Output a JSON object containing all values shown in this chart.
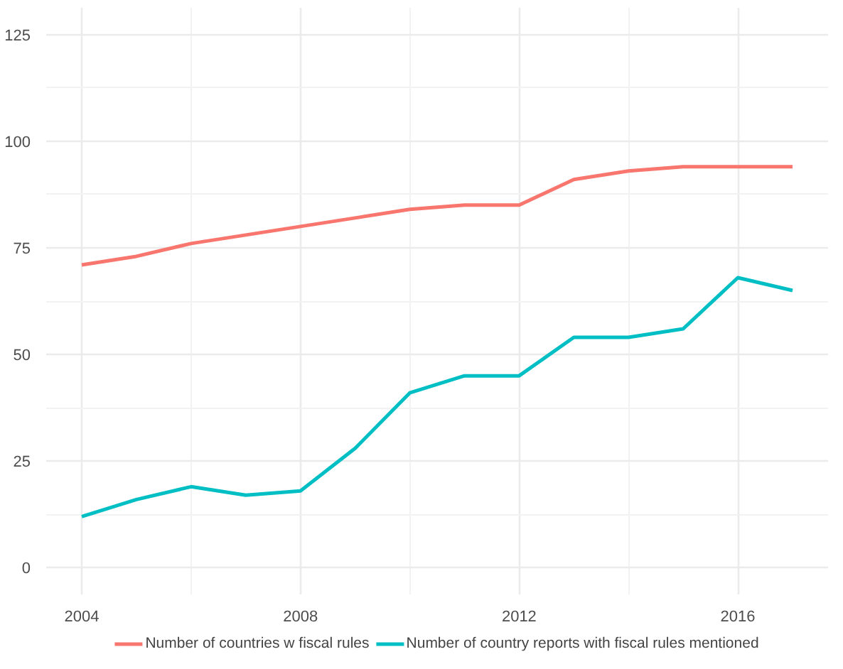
{
  "chart_data": {
    "type": "line",
    "x": [
      2004,
      2005,
      2006,
      2007,
      2008,
      2009,
      2010,
      2011,
      2012,
      2013,
      2014,
      2015,
      2016,
      2017
    ],
    "series": [
      {
        "name": "Number of countries w fiscal rules",
        "color": "#f8766d",
        "values": [
          71,
          73,
          76,
          78,
          80,
          82,
          84,
          85,
          85,
          91,
          93,
          94,
          94,
          94
        ]
      },
      {
        "name": "Number of country reports with fiscal rules mentioned",
        "color": "#00bfc4",
        "values": [
          12,
          16,
          19,
          17,
          18,
          28,
          41,
          45,
          45,
          54,
          54,
          56,
          68,
          65
        ]
      }
    ],
    "xlim": [
      2003.35,
      2017.65
    ],
    "ylim": [
      -6.25,
      131.25
    ],
    "xticks": [
      2004,
      2008,
      2012,
      2016
    ],
    "yticks": [
      0,
      25,
      50,
      75,
      100,
      125
    ],
    "grid": true,
    "legend": "bottom",
    "marker": "none",
    "line_style": "solid"
  }
}
